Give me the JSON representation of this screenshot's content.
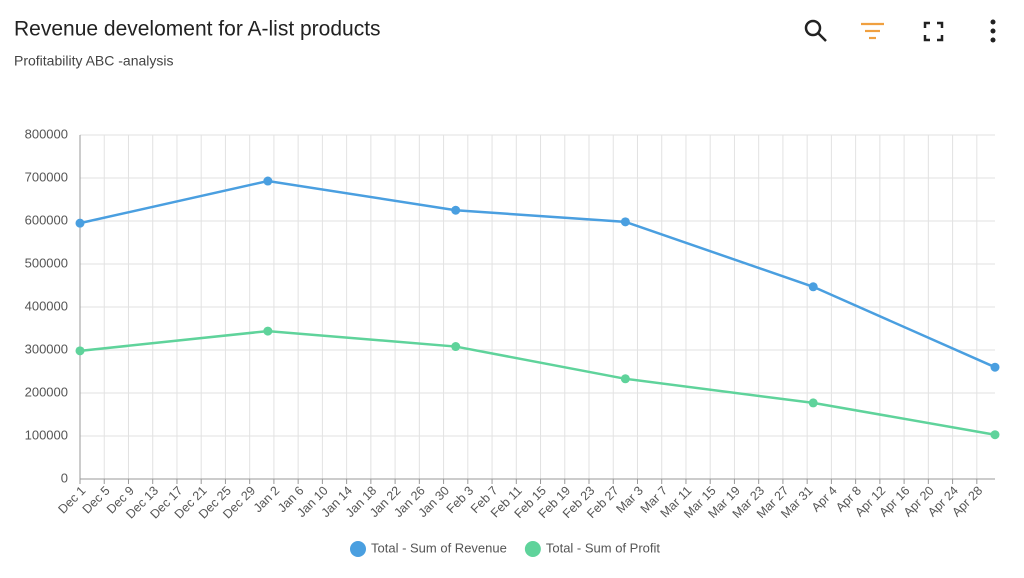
{
  "chart_data": {
    "type": "line",
    "title": "Revenue develoment for A-list products",
    "subtitle": "Profitability ABC -analysis",
    "x": [
      0,
      31,
      62,
      90,
      121,
      151
    ],
    "xlim": [
      0,
      151
    ],
    "xticks": [
      {
        "value": 0,
        "label": "Dec 1"
      },
      {
        "value": 4,
        "label": "Dec 5"
      },
      {
        "value": 8,
        "label": "Dec 9"
      },
      {
        "value": 12,
        "label": "Dec 13"
      },
      {
        "value": 16,
        "label": "Dec 17"
      },
      {
        "value": 20,
        "label": "Dec 21"
      },
      {
        "value": 24,
        "label": "Dec 25"
      },
      {
        "value": 28,
        "label": "Dec 29"
      },
      {
        "value": 32,
        "label": "Jan 2"
      },
      {
        "value": 36,
        "label": "Jan 6"
      },
      {
        "value": 40,
        "label": "Jan 10"
      },
      {
        "value": 44,
        "label": "Jan 14"
      },
      {
        "value": 48,
        "label": "Jan 18"
      },
      {
        "value": 52,
        "label": "Jan 22"
      },
      {
        "value": 56,
        "label": "Jan 26"
      },
      {
        "value": 60,
        "label": "Jan 30"
      },
      {
        "value": 64,
        "label": "Feb 3"
      },
      {
        "value": 68,
        "label": "Feb 7"
      },
      {
        "value": 72,
        "label": "Feb 11"
      },
      {
        "value": 76,
        "label": "Feb 15"
      },
      {
        "value": 80,
        "label": "Feb 19"
      },
      {
        "value": 84,
        "label": "Feb 23"
      },
      {
        "value": 88,
        "label": "Feb 27"
      },
      {
        "value": 92,
        "label": "Mar 3"
      },
      {
        "value": 96,
        "label": "Mar 7"
      },
      {
        "value": 100,
        "label": "Mar 11"
      },
      {
        "value": 104,
        "label": "Mar 15"
      },
      {
        "value": 108,
        "label": "Mar 19"
      },
      {
        "value": 112,
        "label": "Mar 23"
      },
      {
        "value": 116,
        "label": "Mar 27"
      },
      {
        "value": 120,
        "label": "Mar 31"
      },
      {
        "value": 124,
        "label": "Apr 4"
      },
      {
        "value": 128,
        "label": "Apr 8"
      },
      {
        "value": 132,
        "label": "Apr 12"
      },
      {
        "value": 136,
        "label": "Apr 16"
      },
      {
        "value": 140,
        "label": "Apr 20"
      },
      {
        "value": 144,
        "label": "Apr 24"
      },
      {
        "value": 148,
        "label": "Apr 28"
      }
    ],
    "ylim": [
      0,
      800000
    ],
    "yticks": [
      0,
      100000,
      200000,
      300000,
      400000,
      500000,
      600000,
      700000,
      800000
    ],
    "grid": true,
    "legend": "bottom",
    "series": [
      {
        "name": "Total - Sum of Revenue",
        "color": "#4a9fe0",
        "values": [
          595000,
          693000,
          625000,
          598000,
          447000,
          260000
        ]
      },
      {
        "name": "Total - Sum of Profit",
        "color": "#5fd39b",
        "values": [
          298000,
          344000,
          308000,
          233000,
          177000,
          103000
        ]
      }
    ]
  }
}
